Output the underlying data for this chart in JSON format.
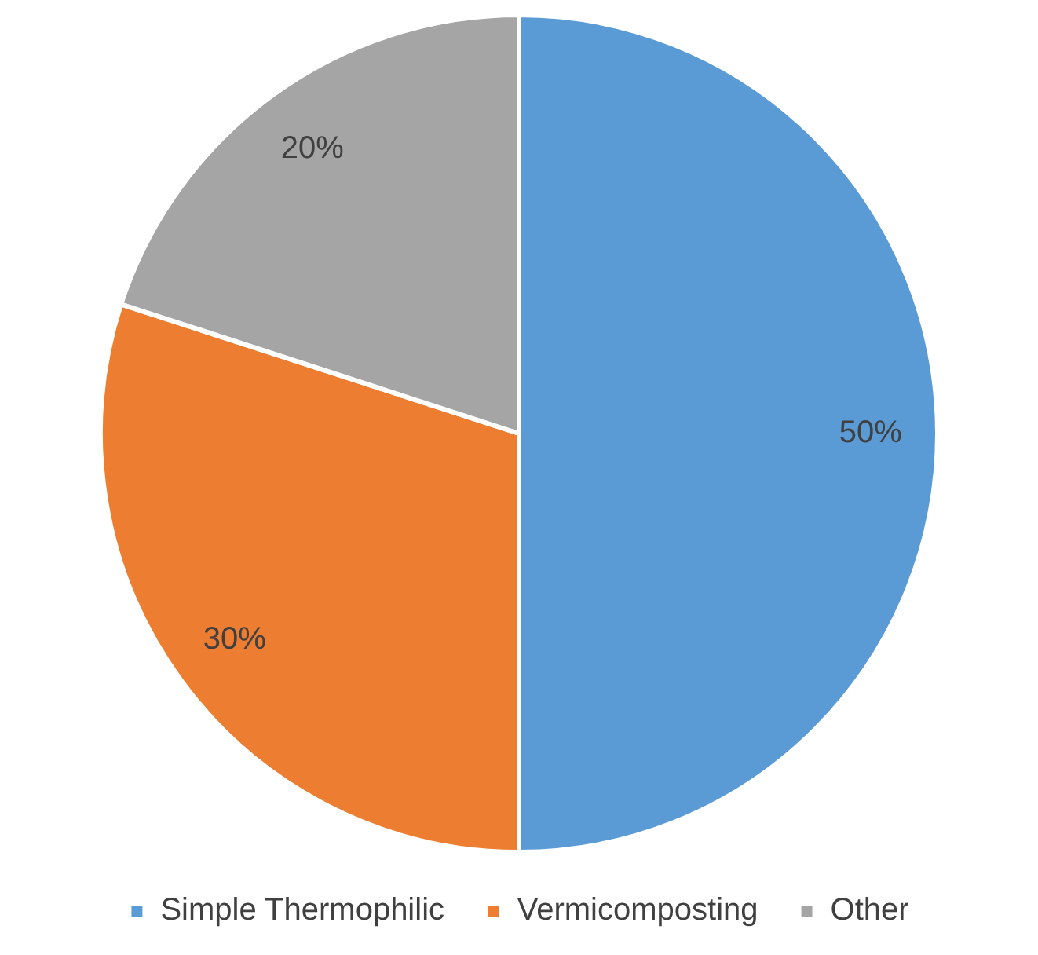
{
  "chart_data": {
    "type": "pie",
    "categories": [
      "Simple Thermophilic",
      "Vermicomposting",
      "Other"
    ],
    "values": [
      50,
      30,
      20
    ],
    "colors": [
      "#5b9bd5",
      "#ed7d31",
      "#a5a5a5"
    ],
    "value_labels": [
      "50%",
      "30%",
      "20%"
    ],
    "legend": "bottom"
  }
}
